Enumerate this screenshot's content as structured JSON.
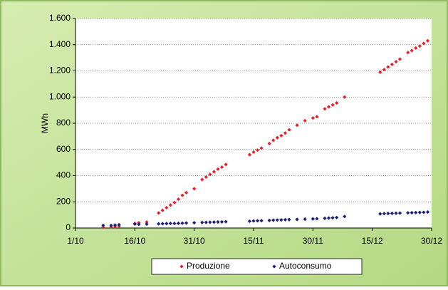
{
  "chart_data": {
    "type": "scatter",
    "y_label": "MWh",
    "xlim": [
      "1/10",
      "30/12"
    ],
    "xticks": [
      "1/10",
      "16/10",
      "31/10",
      "15/11",
      "30/11",
      "15/12",
      "30/12"
    ],
    "ylim": [
      0,
      1600
    ],
    "yticks": [
      0,
      200,
      400,
      600,
      800,
      {
        "value": 1000,
        "label": "1.000"
      },
      {
        "value": 1200,
        "label": "1.200"
      },
      {
        "value": 1400,
        "label": "1.400"
      },
      {
        "value": 1600,
        "label": "1.600"
      }
    ],
    "grid": true,
    "legend": "bottom",
    "series": [
      {
        "name": "Produzione",
        "color": "#e8202a",
        "x": [
          "8/10",
          "10/10",
          "11/10",
          "12/10",
          "16/10",
          "17/10",
          "19/10",
          "22/10",
          "23/10",
          "24/10",
          "25/10",
          "26/10",
          "27/10",
          "28/10",
          "29/10",
          "31/10",
          "2/11",
          "3/11",
          "4/11",
          "5/11",
          "6/11",
          "7/11",
          "8/11",
          "14/11",
          "15/11",
          "16/11",
          "17/11",
          "19/11",
          "20/11",
          "21/11",
          "22/11",
          "23/11",
          "24/11",
          "26/11",
          "28/11",
          "30/11",
          "1/12",
          "3/12",
          "4/12",
          "5/12",
          "6/12",
          "8/12",
          "17/12",
          "18/12",
          "19/12",
          "20/12",
          "21/12",
          "22/12",
          "24/12",
          "25/12",
          "26/12",
          "27/12",
          "28/12",
          "29/12"
        ],
        "values": [
          5,
          10,
          10,
          15,
          35,
          40,
          45,
          115,
          135,
          155,
          175,
          195,
          220,
          250,
          270,
          300,
          370,
          390,
          410,
          430,
          450,
          465,
          485,
          560,
          580,
          595,
          610,
          645,
          670,
          690,
          705,
          725,
          750,
          785,
          820,
          840,
          850,
          910,
          925,
          940,
          955,
          1000,
          1190,
          1210,
          1230,
          1250,
          1270,
          1290,
          1340,
          1355,
          1375,
          1390,
          1410,
          1430
        ]
      },
      {
        "name": "Autoconsumo",
        "color": "#1c1c7a",
        "x": [
          "8/10",
          "10/10",
          "11/10",
          "12/10",
          "16/10",
          "17/10",
          "19/10",
          "22/10",
          "23/10",
          "24/10",
          "25/10",
          "26/10",
          "27/10",
          "28/10",
          "29/10",
          "31/10",
          "2/11",
          "3/11",
          "4/11",
          "5/11",
          "6/11",
          "7/11",
          "8/11",
          "14/11",
          "15/11",
          "16/11",
          "17/11",
          "19/11",
          "20/11",
          "21/11",
          "22/11",
          "23/11",
          "24/11",
          "26/11",
          "28/11",
          "30/11",
          "1/12",
          "3/12",
          "4/12",
          "5/12",
          "6/12",
          "8/12",
          "17/12",
          "18/12",
          "19/12",
          "20/12",
          "21/12",
          "22/12",
          "24/12",
          "25/12",
          "26/12",
          "27/12",
          "28/12",
          "29/12"
        ],
        "values": [
          20,
          20,
          22,
          25,
          30,
          28,
          30,
          32,
          33,
          34,
          35,
          35,
          36,
          37,
          38,
          40,
          42,
          43,
          44,
          45,
          46,
          47,
          48,
          52,
          54,
          55,
          56,
          58,
          60,
          61,
          62,
          63,
          64,
          66,
          68,
          70,
          71,
          74,
          76,
          78,
          80,
          88,
          108,
          110,
          111,
          112,
          113,
          114,
          116,
          117,
          118,
          119,
          120,
          122
        ]
      }
    ]
  }
}
